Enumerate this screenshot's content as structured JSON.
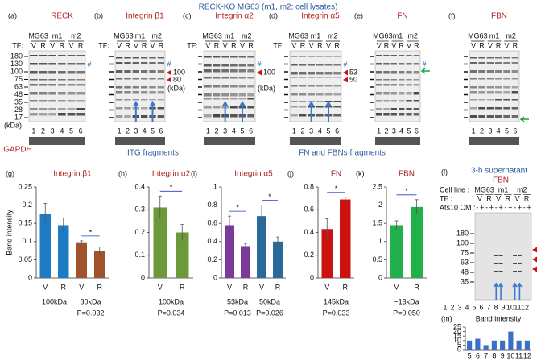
{
  "title": "RECK-KO MG63 (m1, m2; cell lysates)",
  "tf_label": "TF:",
  "groups": [
    "MG63",
    "m1",
    "m2"
  ],
  "vr": [
    "V",
    "R"
  ],
  "lanes": [
    "1",
    "2",
    "3",
    "4",
    "5",
    "6"
  ],
  "blots": [
    {
      "panel": "(a)",
      "name": "RECK",
      "markers": [
        "180",
        "130",
        "100",
        "75",
        "63",
        "48",
        "35",
        "28",
        "17"
      ],
      "unit": "(kDa)",
      "footer": "GAPDH",
      "hash": "#"
    },
    {
      "panel": "(b)",
      "name": "Integrin β1",
      "annotations": [
        "100",
        "80"
      ],
      "unit": "(kDa)",
      "hash": "#"
    },
    {
      "panel": "(c)",
      "name": "Integrin α2",
      "annotations": [
        "100"
      ],
      "unit": "(kDa)",
      "hash": "#"
    },
    {
      "panel": "(d)",
      "name": "Integrin α5",
      "annotations": [
        "53",
        "50"
      ],
      "hash": "#"
    },
    {
      "panel": "(e)",
      "name": "FN",
      "hash": "#"
    },
    {
      "panel": "(f)",
      "name": "FBN"
    }
  ],
  "section_titles": [
    "ITG fragments",
    "FN and FBNs fragments"
  ],
  "chart_data": [
    {
      "type": "bar",
      "panel": "(g)",
      "title": "Integrin β1",
      "y_label": "Band intensity",
      "categories": [
        "V",
        "R",
        "V",
        "R"
      ],
      "values": [
        0.175,
        0.145,
        0.098,
        0.075
      ],
      "errors": [
        0.03,
        0.02,
        0.004,
        0.01
      ],
      "colors": [
        "#1f7bc4",
        "#1f7bc4",
        "#a0522d",
        "#a0522d"
      ],
      "ylim": [
        0,
        0.25
      ],
      "yticks": [
        0,
        0.05,
        0.1,
        0.15,
        0.2,
        0.25
      ],
      "groups": [
        {
          "label": "100kDa"
        },
        {
          "label": "80kDa",
          "p_value": "P=0.032",
          "star": "*"
        }
      ]
    },
    {
      "type": "bar",
      "panel": "(h)",
      "title": "Integrin α2",
      "categories": [
        "V",
        "R"
      ],
      "values": [
        0.31,
        0.2
      ],
      "errors": [
        0.05,
        0.035
      ],
      "colors": [
        "#6a9a3a",
        "#6a9a3a"
      ],
      "ylim": [
        0,
        0.4
      ],
      "yticks": [
        0,
        0.1,
        0.2,
        0.3,
        0.4
      ],
      "groups": [
        {
          "label": "100kDa",
          "p_value": "P=0.034",
          "star": "*"
        }
      ]
    },
    {
      "type": "bar",
      "panel": "(i)",
      "title": "Integrin α5",
      "categories": [
        "V",
        "R",
        "V",
        "R"
      ],
      "values": [
        0.58,
        0.35,
        0.68,
        0.4
      ],
      "errors": [
        0.1,
        0.03,
        0.12,
        0.05
      ],
      "colors": [
        "#7a3a9a",
        "#7a3a9a",
        "#2a6a9a",
        "#2a6a9a"
      ],
      "ylim": [
        0,
        1
      ],
      "yticks": [
        0,
        0.2,
        0.4,
        0.6,
        0.8,
        1
      ],
      "groups": [
        {
          "label": "53kDa",
          "p_value": "P=0.013",
          "star": "*"
        },
        {
          "label": "50kDa",
          "p_value": "P=0.026",
          "star": "*"
        }
      ]
    },
    {
      "type": "bar",
      "panel": "(j)",
      "title": "FN",
      "categories": [
        "V",
        "R"
      ],
      "values": [
        0.43,
        0.69
      ],
      "errors": [
        0.09,
        0.02
      ],
      "colors": [
        "#cc1111",
        "#cc1111"
      ],
      "ylim": [
        0,
        0.8
      ],
      "yticks": [
        0,
        0.2,
        0.4,
        0.6,
        0.8
      ],
      "groups": [
        {
          "label": "145kDa",
          "p_value": "P=0.033",
          "star": "*"
        }
      ]
    },
    {
      "type": "bar",
      "panel": "(k)",
      "title": "FBN",
      "categories": [
        "V",
        "R"
      ],
      "values": [
        1.45,
        1.95
      ],
      "errors": [
        0.12,
        0.2
      ],
      "colors": [
        "#22b04a",
        "#22b04a"
      ],
      "ylim": [
        0,
        2.5
      ],
      "yticks": [
        0,
        0.5,
        1,
        1.5,
        2,
        2.5
      ],
      "groups": [
        {
          "label": "~13kDa",
          "p_value": "P=0.050",
          "star": "*"
        }
      ]
    },
    {
      "type": "bar",
      "panel": "(m)",
      "title": "Band intensity",
      "categories": [
        "5",
        "6",
        "7",
        "8",
        "9",
        "10",
        "11",
        "12"
      ],
      "values": [
        10,
        12,
        5,
        10,
        10,
        20,
        10,
        10
      ],
      "colors": [
        "#3a6fc9",
        "#3a6fc9",
        "#3a6fc9",
        "#3a6fc9",
        "#3a6fc9",
        "#3a6fc9",
        "#3a6fc9",
        "#3a6fc9"
      ],
      "ylim": [
        0,
        25
      ],
      "yticks": [
        0,
        5,
        10,
        15,
        20,
        25
      ]
    }
  ],
  "panel_l": {
    "panel": "(l)",
    "title": "3-h supernatant",
    "name": "FBN",
    "cell_line_label": "Cell line :",
    "tf_label": "TF :",
    "ats_label": "Ats10 CM :",
    "signs": [
      "-",
      "+"
    ],
    "markers": [
      "180",
      "100",
      "75",
      "63",
      "48",
      "35"
    ],
    "lanes": [
      "1",
      "2",
      "3",
      "4",
      "5",
      "6",
      "7",
      "8",
      "9",
      "10",
      "11",
      "12"
    ]
  }
}
